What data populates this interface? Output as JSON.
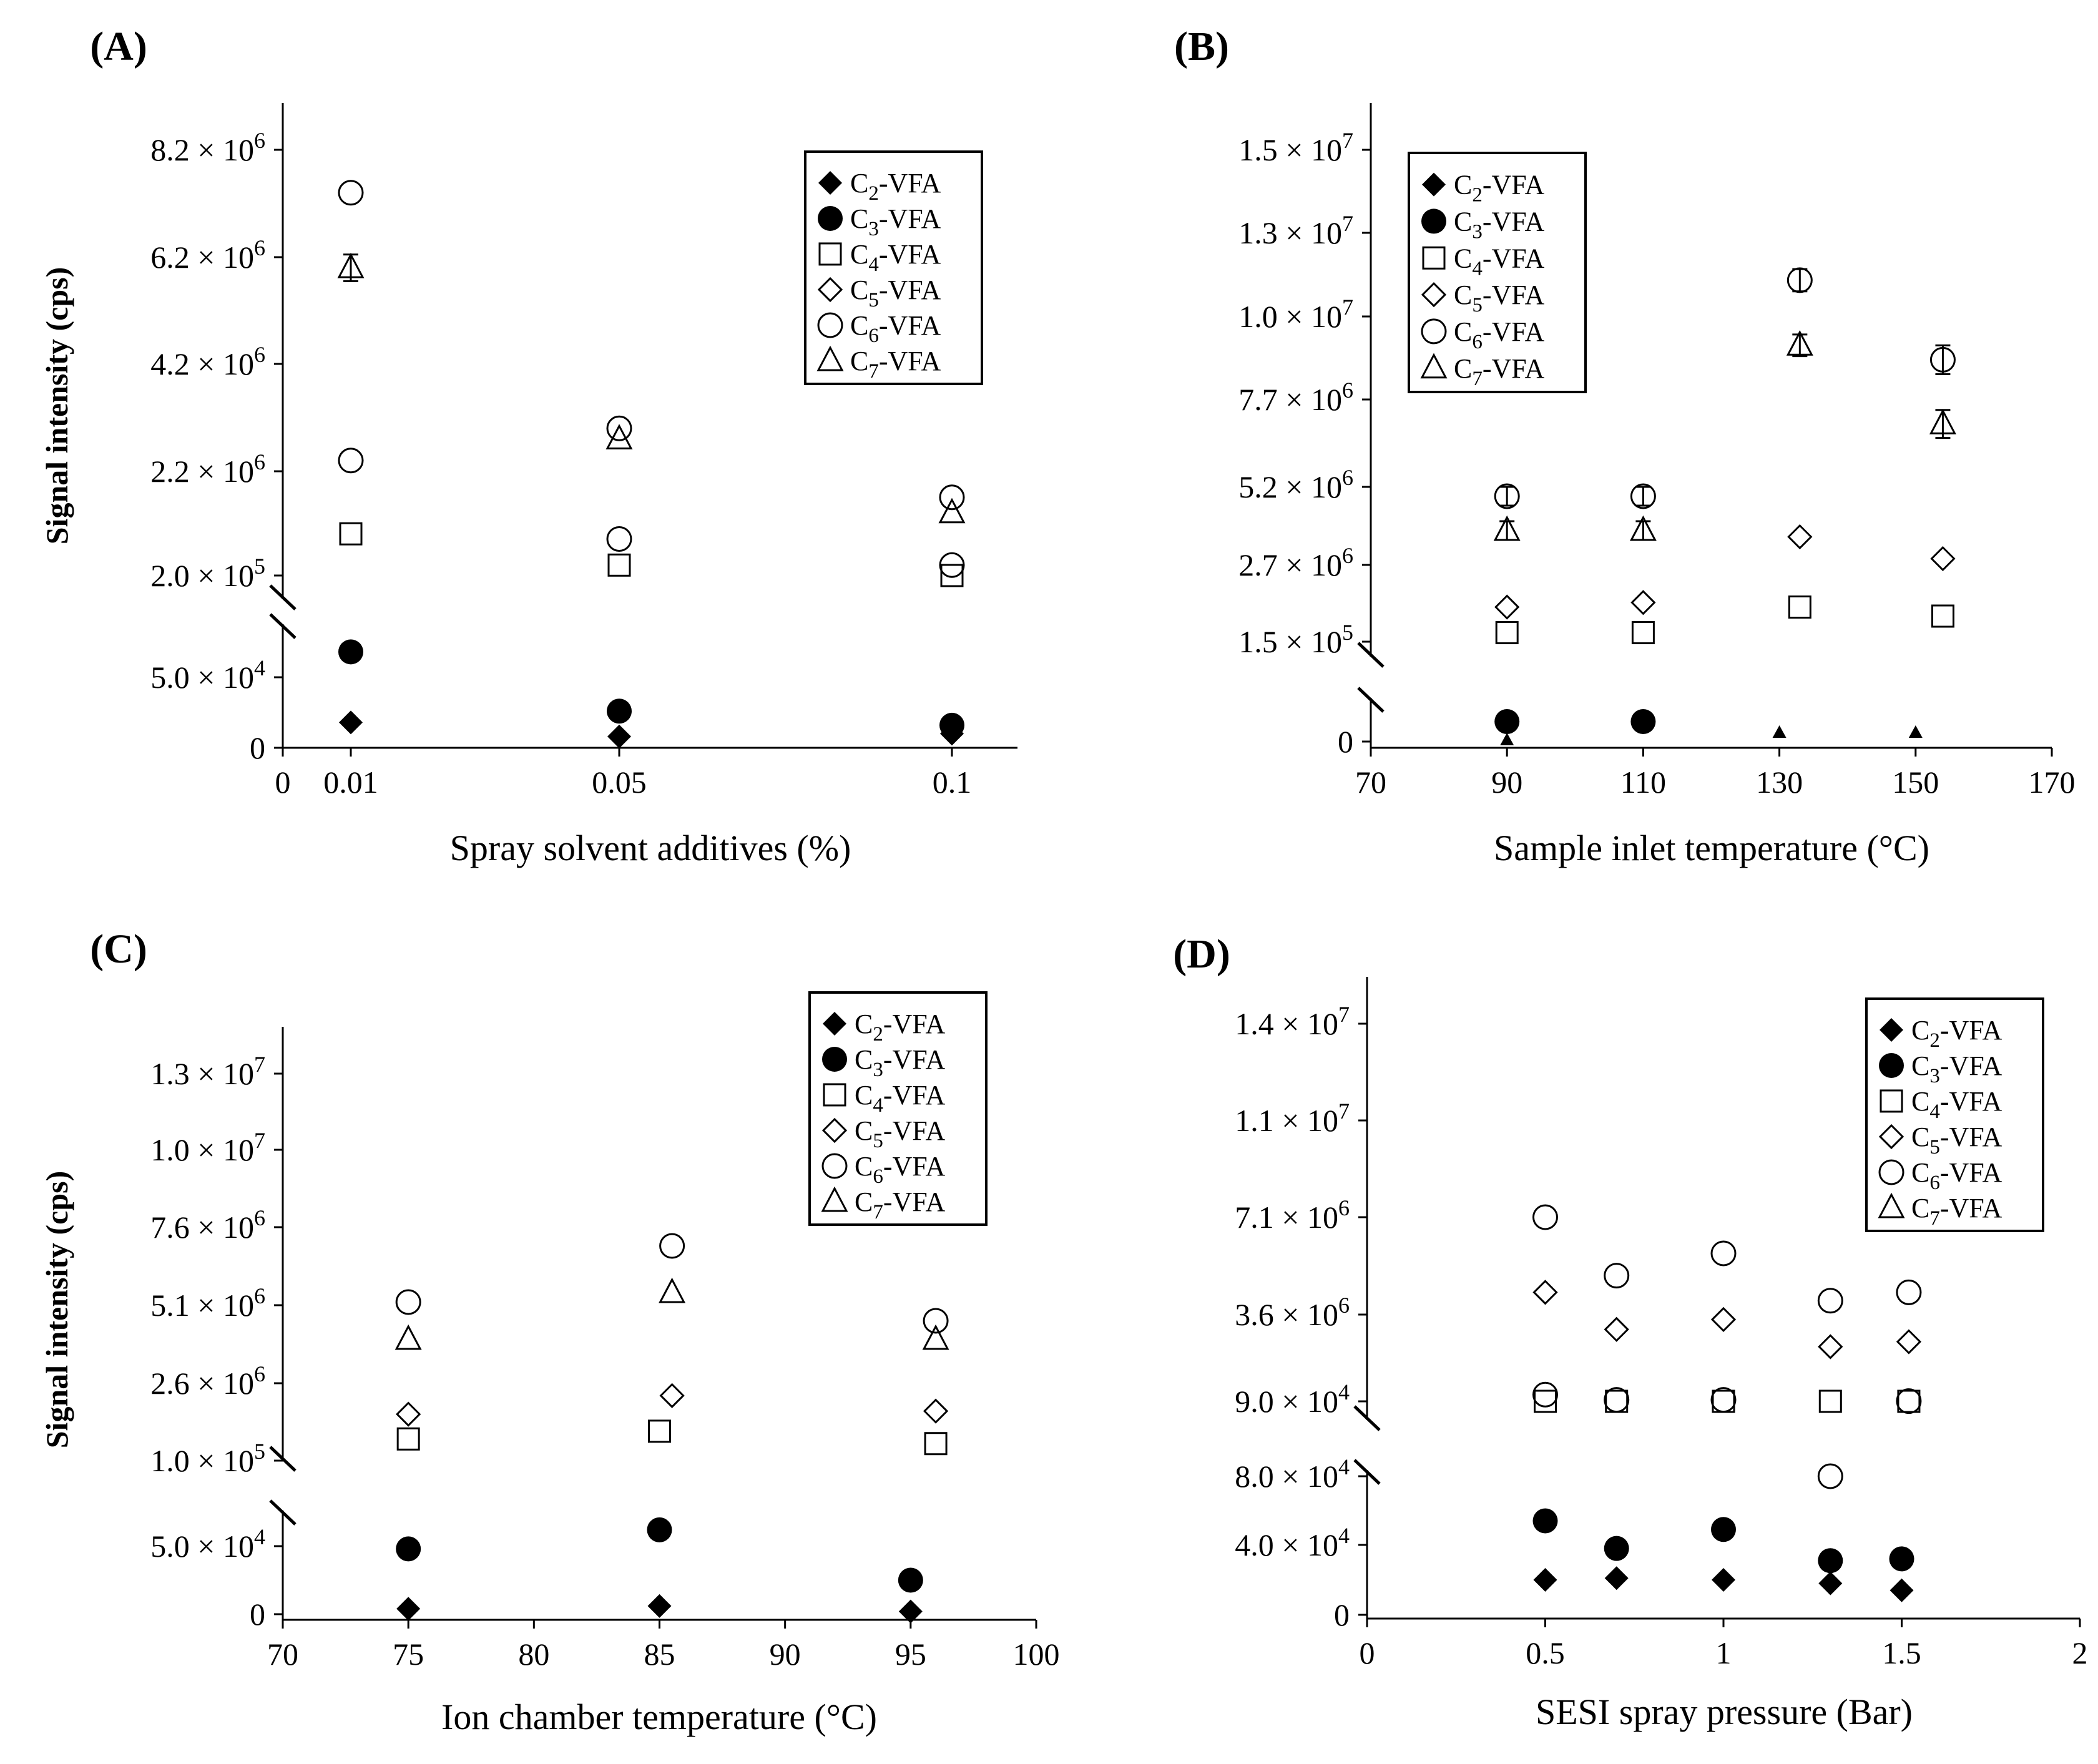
{
  "figure": {
    "ylabel": "Signal intensity (cps)",
    "legend_items": [
      "C2-VFA",
      "C3-VFA",
      "C4-VFA",
      "C5-VFA",
      "C6-VFA",
      "C7-VFA"
    ],
    "colors": {
      "ink": "#000000",
      "background": "#ffffff"
    },
    "marker_icons": [
      "filled-diamond-icon",
      "filled-circle-icon",
      "open-square-icon",
      "open-diamond-icon",
      "open-circle-icon",
      "open-triangle-icon"
    ]
  },
  "chart_data": [
    {
      "id": "A",
      "panel_label": "(A)",
      "type": "scatter",
      "xlabel": "Spray solvent additives (%)",
      "ylabel": "Signal intensity (cps)",
      "x_scale": "categorical",
      "x_ticks": [
        "0",
        "0.01",
        "0.05",
        "0.1"
      ],
      "y_axis_broken": true,
      "y_ticks_lower": [
        "0",
        "5.0 × 10^4"
      ],
      "y_ticks_upper": [
        "2.0 × 10^5",
        "2.2 × 10^6",
        "4.2 × 10^6",
        "6.2 × 10^6",
        "8.2 × 10^6"
      ],
      "series": [
        {
          "name": "C2-VFA",
          "marker": "diamond-filled",
          "points": [
            {
              "x": "0.01",
              "y": 18000
            },
            {
              "x": "0.05",
              "y": 8000
            },
            {
              "x": "0.1",
              "y": 10000
            }
          ]
        },
        {
          "name": "C3-VFA",
          "marker": "circle-filled",
          "points": [
            {
              "x": "0.01",
              "y": 68000
            },
            {
              "x": "0.05",
              "y": 26000
            },
            {
              "x": "0.1",
              "y": 16000
            }
          ]
        },
        {
          "name": "C4-VFA",
          "marker": "square-open",
          "points": [
            {
              "x": "0.01",
              "y": 1000000
            },
            {
              "x": "0.05",
              "y": 400000
            },
            {
              "x": "0.1",
              "y": 200000
            }
          ]
        },
        {
          "name": "C5-VFA",
          "marker": "diamond-open",
          "points": []
        },
        {
          "name": "C6-VFA",
          "marker": "circle-open",
          "points": [
            {
              "x": "0.01",
              "y": 7400000
            },
            {
              "x": "0.01",
              "y": 2400000
            },
            {
              "x": "0.05",
              "y": 3000000
            },
            {
              "x": "0.05",
              "y": 900000
            },
            {
              "x": "0.1",
              "y": 1700000
            },
            {
              "x": "0.1",
              "y": 400000
            }
          ]
        },
        {
          "name": "C7-VFA",
          "marker": "triangle-open",
          "points": [
            {
              "x": "0.01",
              "y": 6000000,
              "err": 250000
            },
            {
              "x": "0.05",
              "y": 2800000
            },
            {
              "x": "0.1",
              "y": 1400000
            }
          ]
        }
      ]
    },
    {
      "id": "B",
      "panel_label": "(B)",
      "type": "scatter",
      "xlabel": "Sample inlet temperature (°C)",
      "ylabel": "",
      "x_scale": "linear",
      "xlim": [
        70,
        170
      ],
      "x_ticks": [
        "70",
        "90",
        "110",
        "130",
        "150",
        "170"
      ],
      "y_axis_broken": true,
      "y_ticks_lower": [
        "0"
      ],
      "y_ticks_upper": [
        "1.5 × 10^5",
        "2.7 × 10^6",
        "5.2 × 10^6",
        "7.7 × 10^6",
        "1.0 × 10^7",
        "1.3 × 10^7",
        "1.5 × 10^7"
      ],
      "series": [
        {
          "name": "C2-VFA",
          "marker": "diamond-filled",
          "points": []
        },
        {
          "name": "C3-VFA",
          "marker": "circle-filled",
          "points": [
            {
              "x": 90,
              "y": 80000
            },
            {
              "x": 110,
              "y": 80000
            }
          ]
        },
        {
          "name": "C4-VFA",
          "marker": "square-open",
          "points": [
            {
              "x": 90,
              "y": 450000
            },
            {
              "x": 110,
              "y": 450000
            },
            {
              "x": 133,
              "y": 1300000
            },
            {
              "x": 154,
              "y": 1000000
            }
          ]
        },
        {
          "name": "C5-VFA",
          "marker": "diamond-open",
          "points": [
            {
              "x": 90,
              "y": 1300000
            },
            {
              "x": 110,
              "y": 1450000
            },
            {
              "x": 133,
              "y": 3600000
            },
            {
              "x": 154,
              "y": 2900000
            }
          ]
        },
        {
          "name": "C6-VFA",
          "marker": "circle-open",
          "points": [
            {
              "x": 90,
              "y": 4900000,
              "err": 300000
            },
            {
              "x": 110,
              "y": 4900000,
              "err": 300000
            },
            {
              "x": 133,
              "y": 11300000,
              "err": 400000
            },
            {
              "x": 154,
              "y": 8800000,
              "err": 400000
            }
          ]
        },
        {
          "name": "C7-VFA",
          "marker": "triangle-open",
          "points": [
            {
              "x": 90,
              "y": 3800000,
              "err": 300000
            },
            {
              "x": 110,
              "y": 3800000,
              "err": 300000
            },
            {
              "x": 133,
              "y": 9200000,
              "err": 300000
            },
            {
              "x": 154,
              "y": 7000000,
              "err": 400000
            }
          ]
        },
        {
          "name": "small triangle markers (unlabeled)",
          "marker": "triangle-small-filled",
          "points": [
            {
              "x": 90,
              "y": 5000
            },
            {
              "x": 110,
              "y": 60000
            },
            {
              "x": 130,
              "y": 35000
            },
            {
              "x": 150,
              "y": 35000
            }
          ]
        }
      ]
    },
    {
      "id": "C",
      "panel_label": "(C)",
      "type": "scatter",
      "xlabel": "Ion chamber temperature (°C)",
      "ylabel": "Signal intensity (cps)",
      "x_scale": "linear",
      "xlim": [
        70,
        100
      ],
      "x_ticks": [
        "70",
        "75",
        "80",
        "85",
        "90",
        "95",
        "100"
      ],
      "y_axis_broken": true,
      "y_ticks_lower": [
        "0",
        "5.0 × 10^4"
      ],
      "y_ticks_upper": [
        "1.0 × 10^5",
        "2.6 × 10^6",
        "5.1 × 10^6",
        "7.6 × 10^6",
        "1.0 × 10^7",
        "1.3 × 10^7"
      ],
      "series": [
        {
          "name": "C2-VFA",
          "marker": "diamond-filled",
          "points": [
            {
              "x": 75,
              "y": 4000
            },
            {
              "x": 85,
              "y": 6000
            },
            {
              "x": 95,
              "y": 2000
            }
          ]
        },
        {
          "name": "C3-VFA",
          "marker": "circle-filled",
          "points": [
            {
              "x": 75,
              "y": 48000
            },
            {
              "x": 85,
              "y": 62000
            },
            {
              "x": 95,
              "y": 25000
            }
          ]
        },
        {
          "name": "C4-VFA",
          "marker": "square-open",
          "points": [
            {
              "x": 75,
              "y": 800000
            },
            {
              "x": 85,
              "y": 1050000
            },
            {
              "x": 96,
              "y": 650000
            }
          ]
        },
        {
          "name": "C5-VFA",
          "marker": "diamond-open",
          "points": [
            {
              "x": 75,
              "y": 1600000
            },
            {
              "x": 85.5,
              "y": 2200000
            },
            {
              "x": 96,
              "y": 1700000
            }
          ]
        },
        {
          "name": "C6-VFA",
          "marker": "circle-open",
          "points": [
            {
              "x": 75,
              "y": 5200000
            },
            {
              "x": 85.5,
              "y": 7000000
            },
            {
              "x": 96,
              "y": 4600000
            }
          ]
        },
        {
          "name": "C7-VFA",
          "marker": "triangle-open",
          "points": [
            {
              "x": 75,
              "y": 4000000
            },
            {
              "x": 85.5,
              "y": 5500000
            },
            {
              "x": 96,
              "y": 4000000
            }
          ]
        }
      ]
    },
    {
      "id": "D",
      "panel_label": "(D)",
      "type": "scatter",
      "xlabel": "SESI spray pressure (Bar)",
      "ylabel": "",
      "x_scale": "linear",
      "xlim": [
        0,
        2
      ],
      "x_ticks": [
        "0",
        "0.5",
        "1",
        "1.5",
        "2"
      ],
      "y_axis_broken": true,
      "y_ticks_lower": [
        "0",
        "4.0 × 10^4",
        "8.0 × 10^4"
      ],
      "y_ticks_upper": [
        "9.0 × 10^4",
        "3.6 × 10^6",
        "7.1 × 10^6",
        "1.1 × 10^7",
        "1.4 × 10^7"
      ],
      "series": [
        {
          "name": "C2-VFA",
          "marker": "diamond-filled",
          "points": [
            {
              "x": 0.5,
              "y": 20000
            },
            {
              "x": 0.7,
              "y": 21000
            },
            {
              "x": 1.0,
              "y": 20000
            },
            {
              "x": 1.3,
              "y": 18000
            },
            {
              "x": 1.5,
              "y": 14000
            }
          ]
        },
        {
          "name": "C3-VFA",
          "marker": "circle-filled",
          "points": [
            {
              "x": 0.5,
              "y": 54000
            },
            {
              "x": 0.7,
              "y": 38000
            },
            {
              "x": 1.0,
              "y": 49000
            },
            {
              "x": 1.3,
              "y": 31000
            },
            {
              "x": 1.5,
              "y": 32000
            }
          ]
        },
        {
          "name": "C4-VFA",
          "marker": "square-open",
          "points": [
            {
              "x": 0.5,
              "y": 90000
            },
            {
              "x": 0.7,
              "y": 90000
            },
            {
              "x": 1.0,
              "y": 90000
            },
            {
              "x": 1.3,
              "y": 90000
            },
            {
              "x": 1.52,
              "y": 90000
            }
          ]
        },
        {
          "name": "C5-VFA",
          "marker": "diamond-open",
          "points": [
            {
              "x": 0.5,
              "y": 4400000
            },
            {
              "x": 0.7,
              "y": 3000000
            },
            {
              "x": 1.0,
              "y": 3400000
            },
            {
              "x": 1.3,
              "y": 2300000
            },
            {
              "x": 1.52,
              "y": 2500000
            }
          ]
        },
        {
          "name": "C6-VFA",
          "marker": "circle-open",
          "points": [
            {
              "x": 0.5,
              "y": 7100000
            },
            {
              "x": 0.7,
              "y": 5000000
            },
            {
              "x": 1.0,
              "y": 5800000
            },
            {
              "x": 1.3,
              "y": 4100000
            },
            {
              "x": 1.52,
              "y": 4400000
            },
            {
              "x": 0.5,
              "y": 360000
            },
            {
              "x": 0.7,
              "y": 150000
            },
            {
              "x": 1.0,
              "y": 150000
            },
            {
              "x": 1.3,
              "y": 80000
            },
            {
              "x": 1.52,
              "y": 100000
            }
          ]
        },
        {
          "name": "C7-VFA",
          "marker": "triangle-open",
          "points": []
        }
      ]
    }
  ]
}
